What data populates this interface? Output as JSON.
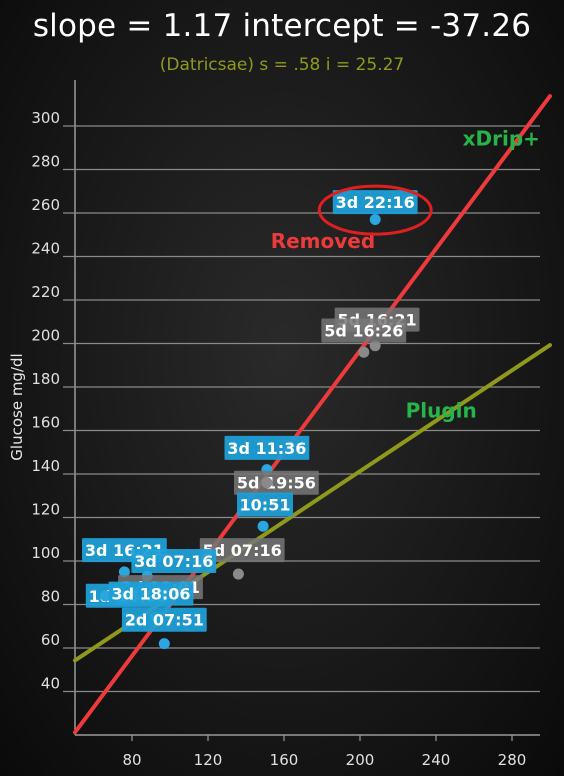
{
  "header": {
    "title": "slope = 1.17 intercept = -37.26",
    "subtitle": "(Datricsae)  s = .58  i = 25.27"
  },
  "chart_data": {
    "type": "scatter",
    "ylabel": "Glucose mg/dl",
    "xlabel": "",
    "x_ticks": [
      "80",
      "120",
      "160",
      "200",
      "240",
      "280"
    ],
    "y_ticks": [
      "40",
      "60",
      "80",
      "100",
      "120",
      "140",
      "160",
      "180",
      "200",
      "220",
      "240",
      "260",
      "280",
      "300"
    ],
    "xlim": [
      50,
      300
    ],
    "ylim": [
      20,
      320
    ],
    "grid": "horizontal",
    "colors": {
      "xdrip": "#ee3a3a",
      "plugin": "#8f9a1c",
      "point": "#2aa7e0",
      "removed_point": "#8a8a8a",
      "label_box": "#1f9fd6",
      "label_box_grey": "#777777"
    },
    "lines": [
      {
        "name": "xDrip+",
        "slope": 1.17,
        "intercept": -37.26,
        "color": "#ee3a3a",
        "label_x": 254,
        "label_y": 291
      },
      {
        "name": "Plugin",
        "slope": 0.58,
        "intercept": 25.27,
        "color": "#8f9a1c",
        "label_x": 224,
        "label_y": 166
      }
    ],
    "annotations": [
      {
        "text": "Removed",
        "color": "#ee3a3a",
        "x": 153,
        "y": 244
      }
    ],
    "points": [
      {
        "x": 208,
        "y": 257,
        "label": "3d 22:16",
        "removed": false,
        "circled": true,
        "lx": 208,
        "ly": 265
      },
      {
        "x": 208,
        "y": 199,
        "label": "5d 16:21",
        "removed": true,
        "lx": 209,
        "ly": 211
      },
      {
        "x": 202,
        "y": 196,
        "label": "5d 16:26",
        "removed": true,
        "lx": 202,
        "ly": 206
      },
      {
        "x": 151,
        "y": 142,
        "label": "3d 11:36",
        "removed": false,
        "lx": 151,
        "ly": 152
      },
      {
        "x": 151,
        "y": 136,
        "label": "5d 19:56",
        "removed": true,
        "lx": 156,
        "ly": 136
      },
      {
        "x": 149,
        "y": 116,
        "label": "10:51",
        "removed": false,
        "lx": 150,
        "ly": 126
      },
      {
        "x": 136,
        "y": 94,
        "label": "5d 07:16",
        "removed": true,
        "lx": 138,
        "ly": 105
      },
      {
        "x": 76,
        "y": 95,
        "label": "3d 16:21",
        "removed": false,
        "lx": 76,
        "ly": 105
      },
      {
        "x": 88,
        "y": 93,
        "label": "3d 07:16",
        "removed": false,
        "lx": 102,
        "ly": 100
      },
      {
        "x": 84,
        "y": 82,
        "label": "2d 10:01",
        "removed": true,
        "lx": 95,
        "ly": 88
      },
      {
        "x": 66,
        "y": 84,
        "label": "1d 18:06",
        "removed": false,
        "lx": 78,
        "ly": 84
      },
      {
        "x": 92,
        "y": 74,
        "label": "3d 18:06",
        "removed": false,
        "lx": 90,
        "ly": 85
      },
      {
        "x": 97,
        "y": 62,
        "label": "2d 07:51",
        "removed": false,
        "lx": 97,
        "ly": 73
      }
    ]
  }
}
